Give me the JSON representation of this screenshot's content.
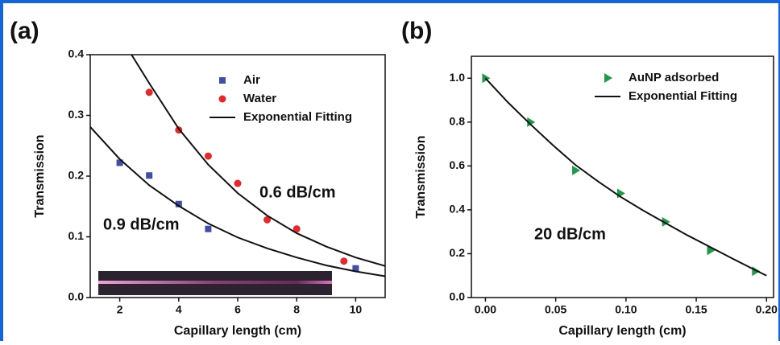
{
  "chart_data": [
    {
      "type": "scatter",
      "panel_label": "(a)",
      "x_label": "Capillary length (cm)",
      "y_label": "Transmission",
      "xlim": [
        1,
        11
      ],
      "ylim": [
        0,
        0.4
      ],
      "xticks": [
        2,
        4,
        6,
        8,
        10
      ],
      "yticks": [
        {
          "value": 0,
          "label": "0.0"
        },
        0.1,
        0.2,
        0.3,
        0.4
      ],
      "legend": "upper right",
      "annotations": [
        "0.6 dB/cm",
        "0.9 dB/cm"
      ],
      "series": [
        {
          "name": "Air",
          "color": "#3f4fa8",
          "marker": "square",
          "x": [
            2,
            3,
            4,
            5,
            10
          ],
          "values": [
            0.222,
            0.201,
            0.154,
            0.113,
            0.048
          ]
        },
        {
          "name": "Water",
          "color": "#e8272a",
          "marker": "circle",
          "x": [
            3,
            4,
            5,
            6,
            7,
            8,
            9.6
          ],
          "values": [
            0.338,
            0.276,
            0.233,
            0.188,
            0.128,
            0.113,
            0.06
          ]
        },
        {
          "name": "Exponential Fitting",
          "color": "#111111",
          "x": [
            2.4,
            3,
            4,
            5,
            6,
            7,
            8,
            9,
            10,
            11,
            null,
            1,
            2,
            3,
            4,
            5,
            6,
            7,
            8,
            9,
            10,
            11
          ],
          "values": [
            0.4,
            0.353,
            0.278,
            0.219,
            0.172,
            0.135,
            0.106,
            0.084,
            0.066,
            0.052,
            null,
            0.281,
            0.228,
            0.185,
            0.151,
            0.122,
            0.099,
            0.081,
            0.066,
            0.053,
            0.043,
            0.035
          ]
        }
      ]
    },
    {
      "type": "scatter",
      "panel_label": "(b)",
      "x_label": "Capillary length (cm)",
      "y_label": "Transmission",
      "xlim": [
        -0.01,
        0.205
      ],
      "ylim": [
        0,
        1.1
      ],
      "xticks": [
        {
          "value": 0,
          "label": "0.00"
        },
        0.05,
        {
          "value": 0.1,
          "label": "0.10"
        },
        0.15,
        {
          "value": 0.2,
          "label": "0.20"
        }
      ],
      "yticks": [
        {
          "value": 0,
          "label": "0.0"
        },
        0.2,
        0.4,
        0.6,
        0.8,
        {
          "value": 1,
          "label": "1.0"
        }
      ],
      "legend": "upper right",
      "annotations": [
        "20 dB/cm"
      ],
      "series": [
        {
          "name": "AuNP adsorbed",
          "color": "#1e9a4a",
          "marker": "triangle",
          "x": [
            0,
            0.032,
            0.064,
            0.096,
            0.128,
            0.16,
            0.192
          ],
          "values": [
            1.0,
            0.8,
            0.58,
            0.475,
            0.345,
            0.215,
            0.12
          ]
        },
        {
          "name": "Exponential Fitting",
          "color": "#111111",
          "x": [
            0,
            0.016,
            0.032,
            0.048,
            0.064,
            0.08,
            0.096,
            0.112,
            0.128,
            0.144,
            0.16,
            0.176,
            0.192,
            0.2
          ],
          "values": [
            1.0,
            0.89,
            0.79,
            0.695,
            0.605,
            0.53,
            0.46,
            0.398,
            0.34,
            0.283,
            0.23,
            0.177,
            0.125,
            0.1
          ]
        }
      ]
    }
  ]
}
